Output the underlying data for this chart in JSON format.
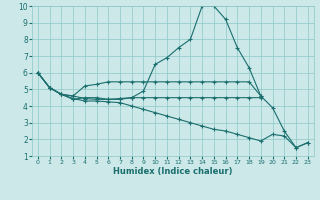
{
  "xlabel": "Humidex (Indice chaleur)",
  "bg_color": "#cce8e8",
  "grid_color": "#8cc8c8",
  "line_color": "#1a6e6e",
  "xlim": [
    -0.5,
    23.5
  ],
  "ylim": [
    1,
    10
  ],
  "yticks": [
    1,
    2,
    3,
    4,
    5,
    6,
    7,
    8,
    9,
    10
  ],
  "xticks": [
    0,
    1,
    2,
    3,
    4,
    5,
    6,
    7,
    8,
    9,
    10,
    11,
    12,
    13,
    14,
    15,
    16,
    17,
    18,
    19,
    20,
    21,
    22,
    23
  ],
  "lines": [
    {
      "x": [
        0,
        1,
        2,
        3,
        4,
        5,
        6,
        7,
        8,
        9,
        10,
        11,
        12,
        13,
        14,
        15,
        16,
        17,
        18,
        19,
        20,
        21,
        22,
        23
      ],
      "y": [
        6.0,
        5.1,
        4.7,
        4.4,
        4.5,
        4.5,
        4.4,
        4.4,
        4.5,
        4.9,
        6.5,
        6.9,
        7.5,
        8.0,
        10.0,
        10.0,
        9.2,
        7.5,
        6.3,
        4.6,
        3.9,
        2.5,
        1.5,
        1.8
      ]
    },
    {
      "x": [
        0,
        1,
        2,
        3,
        4,
        5,
        6,
        7,
        8,
        9,
        10,
        11,
        12,
        13,
        14,
        15,
        16,
        17,
        18,
        19
      ],
      "y": [
        6.0,
        5.1,
        4.7,
        4.6,
        5.2,
        5.3,
        5.45,
        5.45,
        5.45,
        5.45,
        5.45,
        5.45,
        5.45,
        5.45,
        5.45,
        5.45,
        5.45,
        5.45,
        5.45,
        4.6
      ]
    },
    {
      "x": [
        0,
        1,
        2,
        3,
        4,
        5,
        6,
        7,
        8,
        9,
        10,
        11,
        12,
        13,
        14,
        15,
        16,
        17,
        18,
        19
      ],
      "y": [
        6.0,
        5.1,
        4.7,
        4.6,
        4.45,
        4.4,
        4.4,
        4.45,
        4.5,
        4.5,
        4.5,
        4.5,
        4.5,
        4.5,
        4.5,
        4.5,
        4.5,
        4.5,
        4.5,
        4.5
      ]
    },
    {
      "x": [
        0,
        1,
        2,
        3,
        4,
        5,
        6,
        7,
        8,
        9,
        10,
        11,
        12,
        13,
        14,
        15,
        16,
        17,
        18,
        19,
        20,
        21,
        22,
        23
      ],
      "y": [
        6.0,
        5.1,
        4.7,
        4.45,
        4.3,
        4.3,
        4.25,
        4.2,
        4.0,
        3.8,
        3.6,
        3.4,
        3.2,
        3.0,
        2.8,
        2.6,
        2.5,
        2.3,
        2.1,
        1.9,
        2.3,
        2.2,
        1.5,
        1.8
      ]
    }
  ]
}
